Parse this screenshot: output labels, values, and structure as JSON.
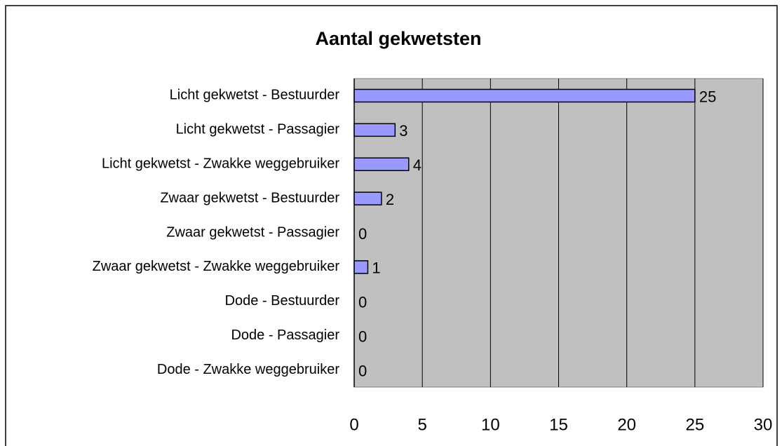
{
  "chart_data": {
    "type": "bar",
    "orientation": "horizontal",
    "title": "Aantal gekwetsten",
    "categories": [
      "Licht gekwetst - Bestuurder",
      "Licht gekwetst - Passagier",
      "Licht gekwetst - Zwakke weggebruiker",
      "Zwaar gekwetst - Bestuurder",
      "Zwaar gekwetst - Passagier",
      "Zwaar gekwetst - Zwakke weggebruiker",
      "Dode - Bestuurder",
      "Dode - Passagier",
      "Dode - Zwakke weggebruiker"
    ],
    "values": [
      25,
      3,
      4,
      2,
      0,
      1,
      0,
      0,
      0
    ],
    "color": "#9999ff",
    "xlim": [
      0,
      30
    ],
    "xticks": [
      0,
      5,
      10,
      15,
      20,
      25,
      30
    ],
    "grid": true
  }
}
